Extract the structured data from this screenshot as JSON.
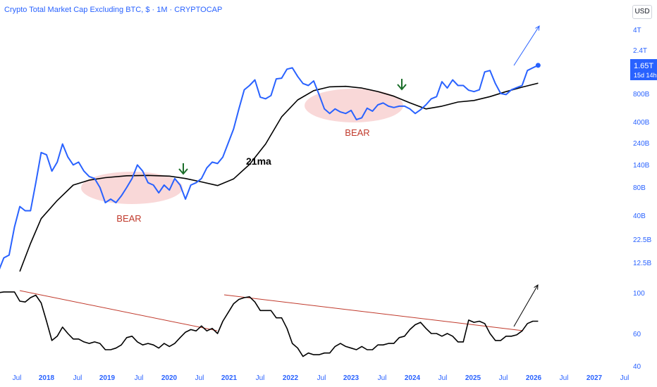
{
  "header": {
    "title": "Crypto Total Market Cap Excluding BTC, $ · 1M · CRYPTOCAP",
    "currency": "USD"
  },
  "colors": {
    "price_line": "#2962ff",
    "ma_line": "#000000",
    "bear_zone": "#f4b8b8",
    "bear_text": "#c0392b",
    "arrow_down": "#1b6e2a",
    "trend_line": "#c0392b",
    "axis_text_x": "#2962ff",
    "axis_text_y": "#2962ff",
    "price_badge": "#2962ff"
  },
  "price_badge": {
    "value": "1.65T",
    "countdown": "15d 14h"
  },
  "annotations": {
    "ma_label": "21ma",
    "bear_1": "BEAR",
    "bear_2": "BEAR"
  },
  "chart_data": [
    {
      "type": "line",
      "title": "Crypto Total Market Cap Excluding BTC",
      "y_scale": "log",
      "y_ticks": [
        "4T",
        "2.4T",
        "800B",
        "400B",
        "240B",
        "140B",
        "80B",
        "40B",
        "22.5B",
        "12.5B"
      ],
      "x_ticks": [
        "Jul",
        "2018",
        "Jul",
        "2019",
        "Jul",
        "2020",
        "Jul",
        "2021",
        "Jul",
        "2022",
        "Jul",
        "2023",
        "Jul",
        "2024",
        "Jul",
        "2025",
        "Jul",
        "2026",
        "Jul",
        "2027",
        "Jul"
      ],
      "series": [
        {
          "name": "Price",
          "x": [
            "2017-04",
            "2017-05",
            "2017-06",
            "2017-07",
            "2017-08",
            "2017-09",
            "2017-10",
            "2017-11",
            "2017-12",
            "2018-01",
            "2018-02",
            "2018-03",
            "2018-04",
            "2018-05",
            "2018-06",
            "2018-07",
            "2018-08",
            "2018-09",
            "2018-10",
            "2018-11",
            "2018-12",
            "2019-01",
            "2019-02",
            "2019-03",
            "2019-04",
            "2019-05",
            "2019-06",
            "2019-07",
            "2019-08",
            "2019-09",
            "2019-10",
            "2019-11",
            "2019-12",
            "2020-01",
            "2020-02",
            "2020-03",
            "2020-04",
            "2020-05",
            "2020-06",
            "2020-07",
            "2020-08",
            "2020-09",
            "2020-10",
            "2020-11",
            "2020-12",
            "2021-01",
            "2021-02",
            "2021-03",
            "2021-04",
            "2021-05",
            "2021-06",
            "2021-07",
            "2021-08",
            "2021-09",
            "2021-10",
            "2021-11",
            "2021-12",
            "2022-01",
            "2022-02",
            "2022-03",
            "2022-04",
            "2022-05",
            "2022-06",
            "2022-07",
            "2022-08",
            "2022-09",
            "2022-10",
            "2022-11",
            "2022-12",
            "2023-01",
            "2023-02",
            "2023-03",
            "2023-04",
            "2023-05",
            "2023-06",
            "2023-07",
            "2023-08",
            "2023-09",
            "2023-10",
            "2023-11",
            "2023-12",
            "2024-01",
            "2024-02",
            "2024-03",
            "2024-04",
            "2024-05",
            "2024-06",
            "2024-07",
            "2024-08",
            "2024-09",
            "2024-10",
            "2024-11",
            "2024-12",
            "2025-01",
            "2025-02",
            "2025-03",
            "2025-04",
            "2025-05",
            "2025-06",
            "2025-07",
            "2025-08",
            "2025-09"
          ],
          "values": [
            10,
            14,
            15,
            30,
            50,
            45,
            45,
            90,
            190,
            180,
            120,
            150,
            235,
            170,
            140,
            150,
            120,
            105,
            100,
            80,
            55,
            60,
            55,
            65,
            80,
            100,
            140,
            120,
            90,
            85,
            70,
            85,
            75,
            100,
            85,
            60,
            85,
            90,
            100,
            130,
            150,
            145,
            170,
            240,
            340,
            560,
            900,
            1000,
            1150,
            750,
            720,
            780,
            1180,
            1200,
            1500,
            1550,
            1250,
            1050,
            1000,
            1120,
            800,
            560,
            500,
            560,
            520,
            500,
            540,
            430,
            450,
            570,
            530,
            620,
            650,
            600,
            580,
            600,
            600,
            560,
            500,
            550,
            620,
            720,
            760,
            1100,
            940,
            1150,
            1000,
            1000,
            890,
            860,
            900,
            1400,
            1450,
            1050,
            820,
            800,
            900,
            950,
            1000,
            1450,
            1550,
            1650
          ]
        },
        {
          "name": "21ma",
          "x": [
            "2017-08",
            "2017-10",
            "2017-12",
            "2018-03",
            "2018-06",
            "2018-09",
            "2018-12",
            "2019-04",
            "2019-08",
            "2019-12",
            "2020-03",
            "2020-06",
            "2020-09",
            "2020-12",
            "2021-03",
            "2021-06",
            "2021-09",
            "2021-12",
            "2022-03",
            "2022-06",
            "2022-09",
            "2022-12",
            "2023-03",
            "2023-06",
            "2023-09",
            "2023-12",
            "2024-03",
            "2024-06",
            "2024-09",
            "2024-12",
            "2025-03",
            "2025-06",
            "2025-09"
          ],
          "values": [
            10,
            20,
            37,
            58,
            85,
            96,
            102,
            107,
            108,
            106,
            100,
            92,
            84,
            99,
            142,
            235,
            460,
            700,
            882,
            968,
            980,
            940,
            862,
            768,
            652,
            560,
            600,
            664,
            690,
            760,
            860,
            960,
            1060
          ]
        }
      ]
    },
    {
      "type": "line",
      "title": "",
      "y_ticks": [
        "100",
        "60",
        "40"
      ],
      "series": [
        {
          "name": "",
          "x": [
            "2017-04",
            "2017-05",
            "2017-06",
            "2017-07",
            "2017-08",
            "2017-09",
            "2017-10",
            "2017-11",
            "2017-12",
            "2018-01",
            "2018-02",
            "2018-03",
            "2018-04",
            "2018-05",
            "2018-06",
            "2018-07",
            "2018-08",
            "2018-09",
            "2018-10",
            "2018-11",
            "2018-12",
            "2019-01",
            "2019-02",
            "2019-03",
            "2019-04",
            "2019-05",
            "2019-06",
            "2019-07",
            "2019-08",
            "2019-09",
            "2019-10",
            "2019-11",
            "2019-12",
            "2020-01",
            "2020-02",
            "2020-03",
            "2020-04",
            "2020-05",
            "2020-06",
            "2020-07",
            "2020-08",
            "2020-09",
            "2020-10",
            "2020-11",
            "2020-12",
            "2021-01",
            "2021-02",
            "2021-03",
            "2021-04",
            "2021-05",
            "2021-06",
            "2021-07",
            "2021-08",
            "2021-09",
            "2021-10",
            "2021-11",
            "2021-12",
            "2022-01",
            "2022-02",
            "2022-03",
            "2022-04",
            "2022-05",
            "2022-06",
            "2022-07",
            "2022-08",
            "2022-09",
            "2022-10",
            "2022-11",
            "2022-12",
            "2023-01",
            "2023-02",
            "2023-03",
            "2023-04",
            "2023-05",
            "2023-06",
            "2023-07",
            "2023-08",
            "2023-09",
            "2023-10",
            "2023-11",
            "2023-12",
            "2024-01",
            "2024-02",
            "2024-03",
            "2024-04",
            "2024-05",
            "2024-06",
            "2024-07",
            "2024-08",
            "2024-09",
            "2024-10",
            "2024-11",
            "2024-12",
            "2025-01",
            "2025-02",
            "2025-03",
            "2025-04",
            "2025-05",
            "2025-06",
            "2025-07",
            "2025-08",
            "2025-09"
          ],
          "values": [
            100,
            101,
            101,
            101,
            90,
            89,
            94,
            97,
            88,
            70,
            55,
            58,
            65,
            60,
            56,
            56,
            54,
            53,
            54,
            53,
            49,
            49,
            50,
            52,
            57,
            58,
            54,
            52,
            53,
            52,
            50,
            53,
            51,
            53,
            57,
            61,
            63,
            62,
            66,
            62,
            64,
            60,
            70,
            78,
            87,
            92,
            94,
            95,
            89,
            80,
            80,
            80,
            73,
            73,
            64,
            53,
            50,
            45,
            47,
            46,
            46,
            47,
            47,
            51,
            53,
            51,
            50,
            49,
            51,
            49,
            49,
            52,
            52,
            53,
            53,
            57,
            58,
            63,
            67,
            69,
            64,
            60,
            60,
            58,
            60,
            58,
            54,
            54,
            71,
            69,
            70,
            68,
            60,
            55,
            55,
            58,
            58,
            59,
            62,
            68,
            70,
            70
          ]
        }
      ]
    }
  ]
}
